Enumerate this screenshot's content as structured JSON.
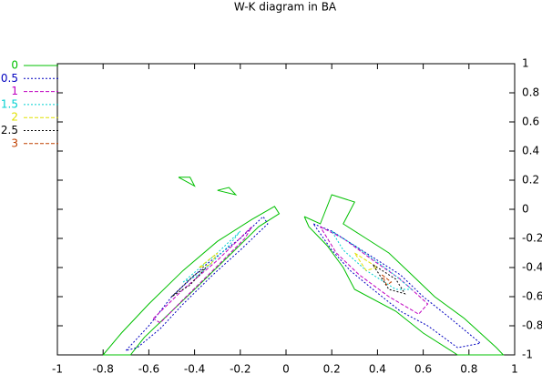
{
  "chart_data": {
    "type": "contour",
    "title": "W-K diagram in BA",
    "xlim": [
      -1,
      1
    ],
    "ylim": [
      -1,
      1
    ],
    "xticks": [
      -1,
      -0.8,
      -0.6,
      -0.4,
      -0.2,
      0,
      0.2,
      0.4,
      0.6,
      0.8,
      1
    ],
    "yticks": [
      -1,
      -0.8,
      -0.6,
      -0.4,
      -0.2,
      0,
      0.2,
      0.4,
      0.6,
      0.8,
      1
    ],
    "legend": "top-left",
    "series": [
      {
        "name": "0",
        "color": "#00c000",
        "x": [
          -0.8,
          -0.72,
          -0.6,
          -0.45,
          -0.3,
          -0.15,
          -0.05,
          -0.03,
          -0.12,
          -0.25,
          -0.38,
          -0.5,
          -0.62,
          -0.68,
          -0.8,
          null,
          0.08,
          0.15,
          0.2,
          0.3,
          0.25,
          0.35,
          0.45,
          0.55,
          0.65,
          0.78,
          0.92,
          0.95,
          0.75,
          0.6,
          0.48,
          0.3,
          0.25,
          0.18,
          0.1,
          0.08,
          null,
          -0.47,
          -0.42,
          -0.4,
          -0.47,
          null,
          -0.3,
          -0.25,
          -0.22,
          -0.3
        ],
        "y": [
          -1,
          -0.85,
          -0.65,
          -0.42,
          -0.22,
          -0.07,
          0.02,
          -0.03,
          -0.12,
          -0.32,
          -0.52,
          -0.7,
          -0.88,
          -1,
          -1,
          null,
          -0.05,
          -0.1,
          0.1,
          0.05,
          -0.1,
          -0.2,
          -0.3,
          -0.45,
          -0.6,
          -0.75,
          -0.95,
          -1,
          -1,
          -0.85,
          -0.7,
          -0.55,
          -0.4,
          -0.25,
          -0.12,
          -0.05,
          null,
          0.22,
          0.22,
          0.16,
          0.22,
          null,
          0.13,
          0.15,
          0.1,
          0.13
        ]
      },
      {
        "name": "0.5",
        "color": "#0000c0",
        "x": [
          -0.7,
          -0.6,
          -0.5,
          -0.35,
          -0.2,
          -0.1,
          -0.08,
          -0.2,
          -0.32,
          -0.45,
          -0.55,
          -0.65,
          -0.7,
          null,
          0.12,
          0.2,
          0.3,
          0.4,
          0.5,
          0.6,
          0.72,
          0.85,
          0.75,
          0.62,
          0.5,
          0.38,
          0.28,
          0.2,
          0.12
        ],
        "y": [
          -0.97,
          -0.8,
          -0.6,
          -0.38,
          -0.2,
          -0.05,
          -0.1,
          -0.28,
          -0.45,
          -0.65,
          -0.82,
          -0.95,
          -0.97,
          null,
          -0.1,
          -0.15,
          -0.25,
          -0.35,
          -0.45,
          -0.6,
          -0.75,
          -0.92,
          -0.95,
          -0.8,
          -0.7,
          -0.55,
          -0.42,
          -0.28,
          -0.1
        ]
      },
      {
        "name": "1",
        "color": "#c000c0",
        "x": [
          -0.58,
          -0.45,
          -0.3,
          -0.15,
          -0.18,
          -0.32,
          -0.45,
          -0.55,
          -0.58,
          null,
          0.15,
          0.25,
          0.38,
          0.5,
          0.62,
          0.58,
          0.45,
          0.32,
          0.22,
          0.15
        ],
        "y": [
          -0.75,
          -0.55,
          -0.35,
          -0.12,
          -0.2,
          -0.42,
          -0.62,
          -0.78,
          -0.75,
          null,
          -0.12,
          -0.2,
          -0.35,
          -0.48,
          -0.65,
          -0.72,
          -0.6,
          -0.45,
          -0.3,
          -0.12
        ]
      },
      {
        "name": "1.5",
        "color": "#00d0d0",
        "x": [
          -0.45,
          -0.3,
          -0.2,
          -0.25,
          -0.38,
          -0.45,
          null,
          0.2,
          0.3,
          0.45,
          0.55,
          0.48,
          0.35,
          0.25,
          0.2
        ],
        "y": [
          -0.5,
          -0.3,
          -0.15,
          -0.25,
          -0.45,
          -0.5,
          null,
          -0.15,
          -0.25,
          -0.42,
          -0.55,
          -0.55,
          -0.42,
          -0.28,
          -0.15
        ]
      },
      {
        "name": "2",
        "color": "#e0e000",
        "x": [
          -0.38,
          -0.3,
          -0.33,
          -0.38,
          null,
          0.3,
          0.4,
          0.35,
          0.3
        ],
        "y": [
          -0.4,
          -0.3,
          -0.38,
          -0.4,
          null,
          -0.3,
          -0.4,
          -0.42,
          -0.3
        ]
      },
      {
        "name": "2.5",
        "color": "#000000",
        "x": [
          -0.5,
          -0.4,
          -0.35,
          -0.42,
          -0.5,
          null,
          0.38,
          0.48,
          0.52,
          0.45,
          0.38
        ],
        "y": [
          -0.6,
          -0.45,
          -0.4,
          -0.52,
          -0.6,
          null,
          -0.38,
          -0.48,
          -0.58,
          -0.55,
          -0.38
        ]
      },
      {
        "name": "3",
        "color": "#c04000",
        "x": [
          0.42,
          0.46,
          0.44,
          0.42
        ],
        "y": [
          -0.45,
          -0.5,
          -0.52,
          -0.45
        ]
      }
    ]
  }
}
